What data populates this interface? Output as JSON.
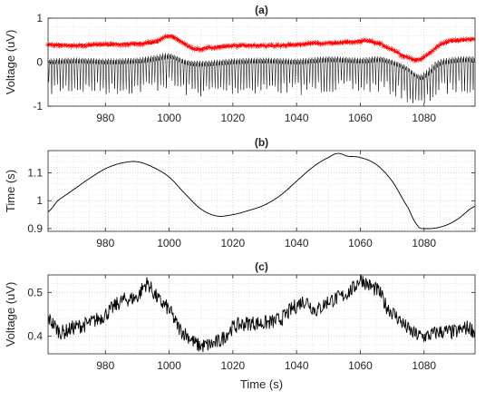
{
  "chart_data": [
    {
      "type": "line",
      "title": "(a)",
      "xlabel": "",
      "ylabel": "Voltage (uV)",
      "xlim": [
        962,
        1096
      ],
      "ylim": [
        -1,
        1
      ],
      "xticks": [
        980,
        1000,
        1020,
        1040,
        1060,
        1080
      ],
      "yticks": [
        -1,
        0,
        1
      ],
      "ytick_labels": [
        "-1",
        "0",
        "1"
      ],
      "grid": true,
      "series": [
        {
          "color": "#000000",
          "style": "oscillating-with-downward-spikes",
          "x": [
            962,
            970,
            980,
            990,
            996,
            1000,
            1005,
            1010,
            1020,
            1030,
            1040,
            1050,
            1060,
            1066,
            1070,
            1074,
            1078,
            1080,
            1084,
            1088,
            1092,
            1096
          ],
          "values": [
            0.0,
            0.02,
            0.0,
            0.02,
            0.08,
            0.12,
            -0.02,
            -0.05,
            0.0,
            0.02,
            0.0,
            0.05,
            0.02,
            0.05,
            -0.03,
            -0.15,
            -0.35,
            -0.3,
            -0.05,
            0.02,
            0.05,
            0.05
          ]
        },
        {
          "color": "#ff0000",
          "marker": "star",
          "style": "peak-envelope",
          "x": [
            962,
            970,
            980,
            990,
            996,
            1000,
            1004,
            1008,
            1015,
            1025,
            1035,
            1045,
            1055,
            1062,
            1066,
            1070,
            1074,
            1078,
            1080,
            1084,
            1088,
            1092,
            1096
          ],
          "values": [
            0.4,
            0.38,
            0.4,
            0.42,
            0.46,
            0.6,
            0.45,
            0.3,
            0.35,
            0.38,
            0.38,
            0.42,
            0.45,
            0.48,
            0.42,
            0.28,
            0.12,
            0.05,
            0.12,
            0.35,
            0.47,
            0.5,
            0.52
          ]
        }
      ]
    },
    {
      "type": "line",
      "title": "(b)",
      "xlabel": "",
      "ylabel": "Time (s)",
      "xlim": [
        962,
        1096
      ],
      "ylim": [
        0.89,
        1.18
      ],
      "xticks": [
        980,
        1000,
        1020,
        1040,
        1060,
        1080
      ],
      "yticks": [
        0.9,
        1.0,
        1.1
      ],
      "ytick_labels": [
        "0.9",
        "1",
        "1.1"
      ],
      "grid": true,
      "series": [
        {
          "color": "#000000",
          "x": [
            962,
            965,
            970,
            975,
            980,
            985,
            990,
            995,
            1000,
            1005,
            1010,
            1015,
            1020,
            1025,
            1030,
            1035,
            1040,
            1045,
            1050,
            1053,
            1056,
            1060,
            1065,
            1070,
            1075,
            1078,
            1080,
            1085,
            1090,
            1096
          ],
          "values": [
            0.96,
            1.0,
            1.04,
            1.08,
            1.115,
            1.135,
            1.14,
            1.12,
            1.085,
            1.025,
            0.97,
            0.945,
            0.95,
            0.965,
            0.985,
            1.02,
            1.07,
            1.12,
            1.155,
            1.17,
            1.16,
            1.155,
            1.13,
            1.07,
            0.975,
            0.91,
            0.9,
            0.905,
            0.93,
            0.98
          ]
        }
      ]
    },
    {
      "type": "line",
      "title": "(c)",
      "xlabel": "Time (s)",
      "ylabel": "Voltage (uV)",
      "xlim": [
        962,
        1096
      ],
      "ylim": [
        0.36,
        0.54
      ],
      "xticks": [
        980,
        1000,
        1020,
        1040,
        1060,
        1080
      ],
      "yticks": [
        0.4,
        0.5
      ],
      "ytick_labels": [
        "0.4",
        "0.5"
      ],
      "grid": true,
      "series": [
        {
          "color": "#000000",
          "style": "jagged",
          "x": [
            962,
            966,
            970,
            975,
            980,
            985,
            990,
            993,
            995,
            997,
            1000,
            1003,
            1006,
            1009,
            1012,
            1016,
            1020,
            1025,
            1030,
            1035,
            1040,
            1043,
            1046,
            1050,
            1054,
            1058,
            1060,
            1062,
            1064,
            1066,
            1068,
            1072,
            1076,
            1080,
            1085,
            1090,
            1094,
            1096
          ],
          "values": [
            0.44,
            0.41,
            0.42,
            0.43,
            0.45,
            0.48,
            0.49,
            0.52,
            0.5,
            0.48,
            0.46,
            0.42,
            0.4,
            0.38,
            0.38,
            0.39,
            0.42,
            0.43,
            0.43,
            0.44,
            0.47,
            0.48,
            0.46,
            0.48,
            0.49,
            0.51,
            0.53,
            0.52,
            0.51,
            0.5,
            0.47,
            0.44,
            0.41,
            0.4,
            0.41,
            0.41,
            0.42,
            0.41
          ]
        }
      ]
    }
  ]
}
